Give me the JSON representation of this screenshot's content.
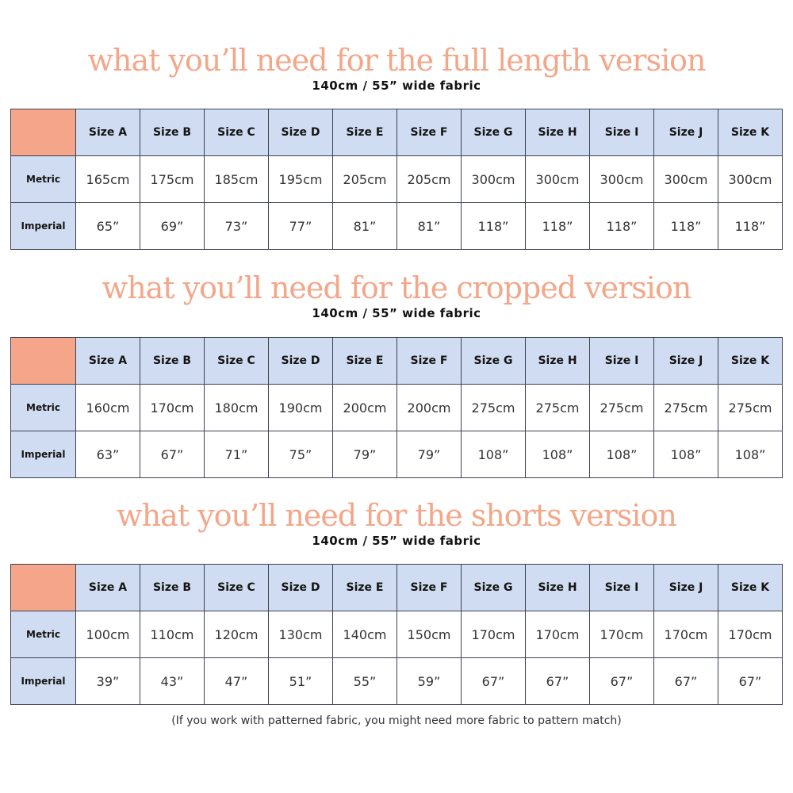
{
  "sizes": [
    "Size A",
    "Size B",
    "Size C",
    "Size D",
    "Size E",
    "Size F",
    "Size G",
    "Size H",
    "Size I",
    "Size J",
    "Size K"
  ],
  "row_labels": {
    "metric": "Metric",
    "imperial": "Imperial"
  },
  "sections": [
    {
      "title": "what you’ll need for the full length version",
      "subtitle": "140cm / 55” wide fabric",
      "metric": [
        "165cm",
        "175cm",
        "185cm",
        "195cm",
        "205cm",
        "205cm",
        "300cm",
        "300cm",
        "300cm",
        "300cm",
        "300cm"
      ],
      "imperial": [
        "65”",
        "69”",
        "73”",
        "77”",
        "81”",
        "81”",
        "118”",
        "118”",
        "118”",
        "118”",
        "118”"
      ]
    },
    {
      "title": "what you’ll need for the cropped version",
      "subtitle": "140cm / 55” wide fabric",
      "metric": [
        "160cm",
        "170cm",
        "180cm",
        "190cm",
        "200cm",
        "200cm",
        "275cm",
        "275cm",
        "275cm",
        "275cm",
        "275cm"
      ],
      "imperial": [
        "63”",
        "67”",
        "71”",
        "75”",
        "79”",
        "79”",
        "108”",
        "108”",
        "108”",
        "108”",
        "108”"
      ]
    },
    {
      "title": "what you’ll need for the shorts version",
      "subtitle": "140cm / 55” wide fabric",
      "metric": [
        "100cm",
        "110cm",
        "120cm",
        "130cm",
        "140cm",
        "150cm",
        "170cm",
        "170cm",
        "170cm",
        "170cm",
        "170cm"
      ],
      "imperial": [
        "39”",
        "43”",
        "47”",
        "51”",
        "55”",
        "59”",
        "67”",
        "67”",
        "67”",
        "67”",
        "67”"
      ]
    }
  ],
  "note": "(If you work with patterned fabric, you might need more fabric to pattern match)",
  "colors": {
    "accent_title": "#f4a688",
    "corner_cell": "#f5a58a",
    "header_cell": "#d0dcf1",
    "border": "#3d4250"
  }
}
